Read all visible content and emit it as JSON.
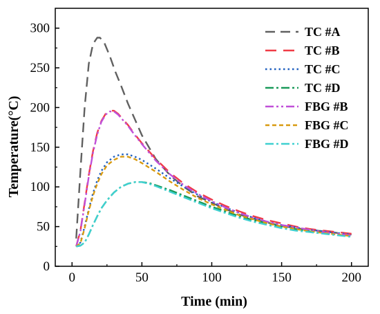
{
  "chart_data": {
    "type": "line",
    "xlabel": "Time (min)",
    "ylabel": "Temperature(°C)",
    "xlim": [
      -12,
      212
    ],
    "ylim": [
      0,
      325
    ],
    "xticks": [
      0,
      50,
      100,
      150,
      200
    ],
    "yticks": [
      0,
      50,
      100,
      150,
      200,
      250,
      300
    ],
    "grid": false,
    "legend_position": "top-right",
    "series": [
      {
        "name": "TC #A",
        "color": "#606060",
        "dash": "dashed",
        "x": [
          3,
          6,
          9,
          12,
          15,
          18,
          20,
          23,
          27,
          31,
          35,
          40,
          45,
          50,
          60,
          70,
          80,
          90,
          100,
          110,
          120,
          130,
          140,
          150,
          160,
          170,
          180,
          190,
          200
        ],
        "y": [
          35,
          120,
          200,
          255,
          280,
          288,
          288,
          282,
          265,
          245,
          228,
          205,
          185,
          165,
          135,
          115,
          100,
          88,
          80,
          72,
          65,
          60,
          55,
          51,
          48,
          46,
          44,
          42,
          40
        ]
      },
      {
        "name": "TC #B",
        "color": "#f03c46",
        "dash": "longdash",
        "x": [
          3,
          6,
          9,
          12,
          15,
          18,
          21,
          24,
          27,
          30,
          33,
          36,
          40,
          45,
          50,
          60,
          70,
          80,
          90,
          100,
          110,
          120,
          130,
          140,
          150,
          160,
          170,
          180,
          190,
          200
        ],
        "y": [
          25,
          45,
          80,
          115,
          145,
          168,
          183,
          192,
          196,
          196,
          192,
          186,
          178,
          166,
          155,
          135,
          118,
          104,
          93,
          84,
          76,
          69,
          63,
          58,
          54,
          50,
          47,
          45,
          43,
          41
        ]
      },
      {
        "name": "TC #C",
        "color": "#1f5fbf",
        "dash": "dotted",
        "x": [
          3,
          6,
          9,
          12,
          15,
          18,
          21,
          25,
          30,
          35,
          40,
          45,
          50,
          60,
          70,
          80,
          90,
          100,
          110,
          120,
          130,
          140,
          150,
          160,
          170,
          180,
          190,
          200
        ],
        "y": [
          25,
          30,
          50,
          72,
          92,
          108,
          120,
          131,
          138,
          141,
          141,
          138,
          134,
          123,
          111,
          100,
          90,
          81,
          74,
          67,
          61,
          56,
          52,
          49,
          46,
          44,
          42,
          40
        ]
      },
      {
        "name": "TC #D",
        "color": "#1a9a5a",
        "dash": "dashdot",
        "x": [
          3,
          6,
          9,
          12,
          15,
          18,
          21,
          25,
          30,
          35,
          40,
          45,
          50,
          55,
          60,
          70,
          80,
          90,
          100,
          110,
          120,
          130,
          140,
          150,
          160,
          170,
          180,
          190,
          200
        ],
        "y": [
          25,
          26,
          30,
          40,
          52,
          63,
          73,
          83,
          93,
          100,
          104,
          106,
          106,
          105,
          102,
          96,
          89,
          82,
          75,
          69,
          63,
          58,
          54,
          50,
          47,
          44,
          42,
          40,
          38
        ]
      },
      {
        "name": "FBG #B",
        "color": "#c050d8",
        "dash": "dashdotdot",
        "x": [
          3,
          6,
          9,
          12,
          15,
          18,
          21,
          24,
          27,
          30,
          33,
          36,
          40,
          45,
          50,
          60,
          70,
          80,
          90,
          100,
          110,
          120,
          130,
          140,
          150,
          160,
          170,
          180,
          190,
          200
        ],
        "y": [
          25,
          44,
          78,
          113,
          143,
          166,
          182,
          191,
          195,
          195,
          191,
          185,
          177,
          165,
          154,
          133,
          116,
          102,
          91,
          82,
          74,
          67,
          61,
          56,
          52,
          49,
          46,
          43,
          41,
          39
        ]
      },
      {
        "name": "FBG #C",
        "color": "#d89a10",
        "dash": "shortdash",
        "x": [
          3,
          6,
          9,
          12,
          15,
          18,
          21,
          25,
          30,
          35,
          40,
          45,
          50,
          60,
          70,
          80,
          90,
          100,
          110,
          120,
          130,
          140,
          150,
          160,
          170,
          180,
          190,
          200
        ],
        "y": [
          25,
          29,
          48,
          70,
          89,
          104,
          116,
          127,
          134,
          138,
          138,
          135,
          130,
          119,
          107,
          96,
          86,
          78,
          71,
          64,
          59,
          54,
          50,
          47,
          44,
          42,
          40,
          38
        ]
      },
      {
        "name": "FBG #D",
        "color": "#3fd0d0",
        "dash": "dashdot",
        "x": [
          3,
          6,
          9,
          12,
          15,
          18,
          21,
          25,
          30,
          35,
          40,
          45,
          50,
          55,
          60,
          70,
          80,
          90,
          100,
          110,
          120,
          130,
          140,
          150,
          160,
          170,
          180,
          190,
          200
        ],
        "y": [
          25,
          26,
          30,
          40,
          52,
          63,
          73,
          83,
          93,
          100,
          104,
          106,
          106,
          104,
          101,
          94,
          87,
          80,
          73,
          67,
          61,
          56,
          52,
          48,
          45,
          43,
          41,
          39,
          37
        ]
      }
    ]
  }
}
